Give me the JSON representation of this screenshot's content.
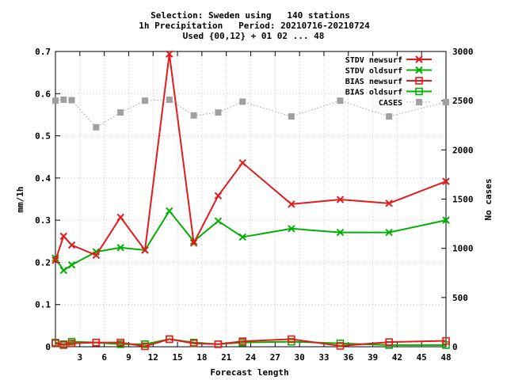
{
  "chart_data": {
    "type": "line",
    "title_lines": [
      "Selection: Sweden using   140 stations",
      "1h Precipitation   Period: 20210716-20210724",
      "Used {00,12} + 01 02 ... 48"
    ],
    "xlabel": "Forecast length",
    "ylabel": "mm/1h",
    "y2label": "No cases",
    "xlim": [
      0,
      48
    ],
    "ylim": [
      0,
      0.7
    ],
    "y2lim": [
      0,
      3000
    ],
    "xticks": [
      3,
      6,
      9,
      12,
      15,
      18,
      21,
      24,
      27,
      30,
      33,
      36,
      39,
      42,
      45,
      48
    ],
    "yticks": [
      0,
      0.1,
      0.2,
      0.3,
      0.4,
      0.5,
      0.6,
      0.7
    ],
    "y2ticks": [
      0,
      500,
      1000,
      1500,
      2000,
      2500,
      3000
    ],
    "x": [
      0,
      1,
      2,
      5,
      8,
      11,
      14,
      17,
      20,
      23,
      29,
      35,
      41,
      48
    ],
    "legend_position": "top-right",
    "series": [
      {
        "name": "STDV newsurf",
        "axis": "y",
        "color": "#e41a1c",
        "marker": "x",
        "values": [
          0.205,
          0.262,
          0.241,
          0.217,
          0.307,
          0.229,
          0.694,
          0.246,
          0.358,
          0.436,
          0.338,
          0.349,
          0.34,
          0.392
        ]
      },
      {
        "name": "STDV oldsurf",
        "axis": "y",
        "color": "#00b000",
        "marker": "x",
        "values": [
          0.21,
          0.181,
          0.194,
          0.225,
          0.235,
          0.229,
          0.322,
          0.25,
          0.298,
          0.26,
          0.28,
          0.271,
          0.271,
          0.3
        ]
      },
      {
        "name": "BIAS newsurf",
        "axis": "y",
        "color": "#e41a1c",
        "marker": "square",
        "values": [
          0.008,
          0.004,
          0.008,
          0.01,
          0.01,
          0.001,
          0.018,
          0.008,
          0.006,
          0.013,
          0.018,
          0.002,
          0.011,
          0.014
        ]
      },
      {
        "name": "BIAS oldsurf",
        "axis": "y",
        "color": "#00b000",
        "marker": "square",
        "values": [
          0.01,
          0.006,
          0.012,
          0.01,
          0.006,
          0.006,
          0.018,
          0.01,
          0.006,
          0.01,
          0.012,
          0.008,
          0.004,
          0.004
        ]
      },
      {
        "name": "CASES",
        "axis": "y2",
        "color": "#a0a0a0",
        "marker": "filled-square",
        "values": [
          2500,
          2510,
          2505,
          2230,
          2380,
          2500,
          2510,
          2350,
          2380,
          2490,
          2340,
          2500,
          2340,
          2485
        ]
      }
    ]
  }
}
